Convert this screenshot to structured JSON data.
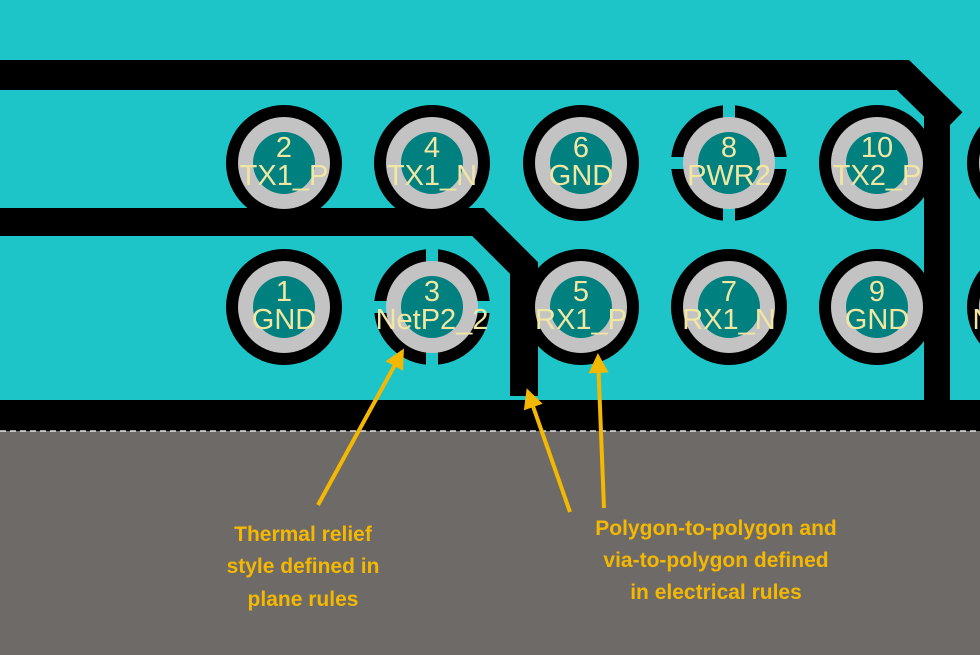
{
  "colors": {
    "copper_plane": "#1ec5c8",
    "board_void": "#6d6a68",
    "track_gap": "#000000",
    "pad_ring": "#c3c3c3",
    "pad_hole": "#00807f",
    "pad_label": "#f2e6a3",
    "callout": "#f5b800"
  },
  "pads": {
    "top_row": [
      {
        "number": "2",
        "net": "TX1_P"
      },
      {
        "number": "4",
        "net": "TX1_N"
      },
      {
        "number": "6",
        "net": "GND"
      },
      {
        "number": "8",
        "net": "PWR2"
      },
      {
        "number": "10",
        "net": "TX2_P"
      }
    ],
    "bottom_row": [
      {
        "number": "1",
        "net": "GND"
      },
      {
        "number": "3",
        "net": "NetP2_2"
      },
      {
        "number": "5",
        "net": "RX1_P"
      },
      {
        "number": "7",
        "net": "RX1_N"
      },
      {
        "number": "9",
        "net": "GND"
      }
    ],
    "edge_fragment": "N"
  },
  "callouts": {
    "thermal": {
      "lines": [
        "Thermal relief",
        "style defined in",
        "plane rules"
      ]
    },
    "electrical": {
      "lines": [
        "Polygon-to-polygon and",
        "via-to-polygon defined",
        "in electrical rules"
      ]
    }
  }
}
